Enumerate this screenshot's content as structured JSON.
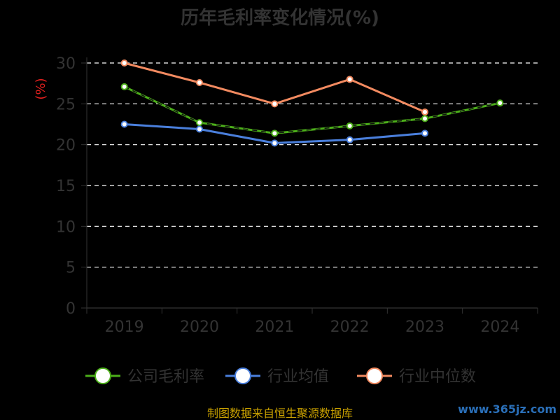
{
  "chart_data": {
    "type": "line",
    "title": "历年毛利率变化情况(%)",
    "ylabel": "(%)",
    "xlabel": "",
    "categories": [
      "2019",
      "2020",
      "2021",
      "2022",
      "2023",
      "2024"
    ],
    "ylim": [
      0,
      30
    ],
    "yticks": [
      "0",
      "5",
      "10",
      "15",
      "20",
      "25",
      "30"
    ],
    "grid": true,
    "legend_position": "bottom",
    "series": [
      {
        "name": "公司毛利率",
        "color": "#4caf1a",
        "values": [
          27.1,
          22.7,
          21.4,
          22.3,
          23.2,
          25.1
        ]
      },
      {
        "name": "行业均值",
        "color": "#4a7fdc",
        "values": [
          22.5,
          21.9,
          20.2,
          20.6,
          21.4,
          null
        ]
      },
      {
        "name": "行业中位数",
        "color": "#f28a60",
        "values": [
          30.0,
          27.6,
          25.0,
          28.0,
          24.0,
          null
        ]
      }
    ],
    "trend_line": {
      "color": "#111111",
      "dashed": true
    }
  },
  "footer": {
    "source_text": "制图数据来自恒生聚源数据库",
    "watermark": "www.365jz.com"
  }
}
